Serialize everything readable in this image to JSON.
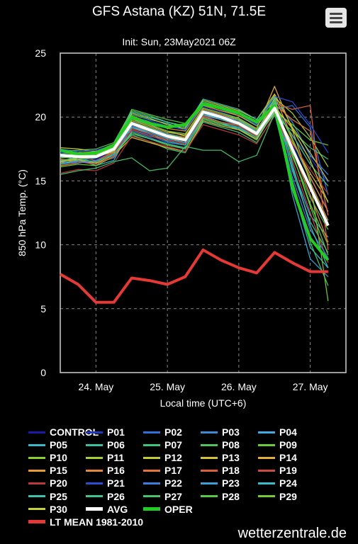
{
  "header": {
    "title": "GFS Astana (KZ) 51N, 71.5E",
    "subtitle": "Init: Sun, 23May2021 06Z",
    "menu_icon": "hamburger-menu-icon"
  },
  "footer": {
    "credit": "wetterzentrale.de"
  },
  "colors": {
    "background": "#000000",
    "avg": "#ffffff",
    "oper": "#22cc22",
    "lt_mean": "#e53935",
    "grid": "#888888"
  },
  "chart_data": {
    "type": "line",
    "title": "GFS Astana (KZ) 51N, 71.5E",
    "subtitle": "Init: Sun, 23May2021 06Z",
    "xlabel": "Local time (UTC+6)",
    "ylabel": "850 hPa Temp. (°C)",
    "x_tick_labels": [
      "24. May",
      "25. May",
      "26. May",
      "27. May"
    ],
    "y_ticks": [
      0,
      5,
      10,
      15,
      20,
      25
    ],
    "ylim": [
      0,
      25
    ],
    "x_unit": "hours from 23 May 12:00 local",
    "x": [
      0,
      6,
      12,
      18,
      24,
      30,
      36,
      42,
      48,
      54,
      60,
      66,
      72,
      78,
      84,
      90,
      96
    ],
    "grid": true,
    "legend_position": "bottom",
    "avg": [
      17.0,
      16.9,
      16.9,
      17.5,
      19.5,
      19.0,
      18.5,
      18.2,
      20.4,
      20.0,
      19.5,
      18.7,
      20.7,
      17.5,
      14.5,
      11.5,
      null
    ],
    "oper": [
      17.4,
      17.1,
      17.2,
      17.8,
      20.0,
      19.5,
      19.2,
      19.4,
      21.0,
      20.7,
      20.3,
      19.6,
      20.9,
      14.5,
      10.5,
      8.8,
      null
    ],
    "lt_mean": [
      7.7,
      6.9,
      5.5,
      5.5,
      7.4,
      7.2,
      6.9,
      7.5,
      9.6,
      8.8,
      8.2,
      7.8,
      9.4,
      8.6,
      7.9,
      7.9,
      null
    ],
    "members": [
      {
        "name": "CONTROL",
        "color": "#1a1aa8",
        "values": [
          17.0,
          16.8,
          16.7,
          17.3,
          19.2,
          18.8,
          18.4,
          18.0,
          20.2,
          19.9,
          19.6,
          18.7,
          20.6,
          17.8,
          15.2,
          12.8
        ]
      },
      {
        "name": "P01",
        "color": "#2038c0",
        "values": [
          16.8,
          17.0,
          16.9,
          17.6,
          19.8,
          19.3,
          18.9,
          18.6,
          20.8,
          20.4,
          19.9,
          18.9,
          21.1,
          18.5,
          16.8,
          14.9
        ]
      },
      {
        "name": "P02",
        "color": "#2f6fd8",
        "values": [
          17.5,
          17.3,
          16.9,
          17.9,
          19.0,
          18.6,
          18.0,
          17.8,
          20.1,
          19.6,
          19.1,
          18.2,
          20.6,
          20.9,
          19.2,
          13.9
        ]
      },
      {
        "name": "P03",
        "color": "#3a8ad8",
        "values": [
          16.3,
          16.5,
          16.4,
          16.8,
          18.9,
          18.4,
          17.9,
          17.5,
          20.5,
          20.2,
          19.8,
          18.9,
          21.3,
          19.6,
          17.0,
          15.5
        ]
      },
      {
        "name": "P04",
        "color": "#45a8e8",
        "values": [
          16.5,
          16.9,
          17.0,
          17.2,
          19.4,
          19.0,
          18.6,
          18.3,
          20.3,
          19.8,
          19.4,
          18.6,
          20.8,
          16.0,
          12.3,
          10.6
        ]
      },
      {
        "name": "P05",
        "color": "#3ab8c8",
        "values": [
          16.9,
          16.7,
          16.2,
          16.6,
          19.2,
          18.7,
          18.1,
          17.8,
          19.9,
          19.5,
          19.2,
          18.4,
          20.3,
          14.6,
          9.8,
          8.2
        ]
      },
      {
        "name": "P06",
        "color": "#3cc0a0",
        "values": [
          17.2,
          17.1,
          17.0,
          17.7,
          20.2,
          19.8,
          19.5,
          19.0,
          21.1,
          20.8,
          20.4,
          19.5,
          21.4,
          15.8,
          11.8,
          9.4
        ]
      },
      {
        "name": "P07",
        "color": "#43c478",
        "values": [
          16.7,
          16.6,
          16.5,
          17.1,
          18.6,
          18.1,
          17.5,
          17.2,
          19.6,
          19.2,
          18.8,
          18.0,
          20.1,
          18.9,
          17.6,
          16.7
        ]
      },
      {
        "name": "P08",
        "color": "#52c25a",
        "values": [
          17.3,
          17.4,
          17.5,
          18.0,
          20.5,
          20.1,
          19.6,
          19.3,
          21.0,
          20.6,
          20.1,
          19.3,
          21.0,
          16.9,
          13.7,
          11.2
        ]
      },
      {
        "name": "P09",
        "color": "#6acc3a",
        "values": [
          16.1,
          16.3,
          16.2,
          16.9,
          18.8,
          18.3,
          17.8,
          17.5,
          19.9,
          19.5,
          19.0,
          18.2,
          20.5,
          19.4,
          18.2,
          17.8
        ]
      },
      {
        "name": "P10",
        "color": "#86cf2e",
        "values": [
          17.0,
          16.9,
          16.8,
          17.4,
          19.6,
          19.2,
          18.7,
          18.4,
          20.6,
          20.2,
          19.8,
          18.9,
          21.2,
          17.1,
          13.2,
          10.0
        ]
      },
      {
        "name": "P11",
        "color": "#a4cf30",
        "values": [
          16.6,
          16.8,
          17.0,
          17.5,
          19.9,
          19.4,
          18.9,
          18.5,
          20.2,
          19.8,
          19.5,
          18.5,
          21.5,
          20.3,
          18.4,
          16.1
        ]
      },
      {
        "name": "P12",
        "color": "#c0cc34",
        "values": [
          17.6,
          17.5,
          17.3,
          17.8,
          20.3,
          19.9,
          19.4,
          19.1,
          21.3,
          20.9,
          20.5,
          19.8,
          21.8,
          19.2,
          17.2,
          15.0
        ]
      },
      {
        "name": "P13",
        "color": "#d4c03a",
        "values": [
          16.4,
          16.6,
          16.4,
          17.0,
          18.4,
          18.0,
          17.6,
          17.3,
          19.7,
          19.3,
          19.0,
          18.3,
          20.4,
          18.0,
          15.6,
          13.4
        ]
      },
      {
        "name": "P14",
        "color": "#e0ae3a",
        "values": [
          17.1,
          17.0,
          17.1,
          17.6,
          19.7,
          19.3,
          18.8,
          18.6,
          20.7,
          20.3,
          19.9,
          19.1,
          22.4,
          19.0,
          14.9,
          11.9
        ]
      },
      {
        "name": "P15",
        "color": "#e89a3a",
        "values": [
          16.9,
          17.2,
          17.3,
          17.9,
          20.1,
          19.6,
          19.1,
          18.9,
          20.9,
          20.5,
          20.1,
          19.4,
          21.7,
          18.3,
          15.3,
          12.6
        ]
      },
      {
        "name": "P16",
        "color": "#e8863a",
        "values": [
          16.2,
          16.4,
          16.6,
          17.2,
          19.3,
          18.9,
          18.4,
          18.0,
          20.0,
          19.6,
          19.3,
          18.6,
          20.9,
          17.4,
          13.9,
          10.2
        ]
      },
      {
        "name": "P17",
        "color": "#e4743c",
        "values": [
          17.4,
          17.2,
          16.9,
          17.6,
          19.5,
          19.1,
          18.6,
          18.4,
          20.6,
          20.2,
          19.7,
          18.8,
          21.0,
          19.8,
          18.9,
          12.3
        ]
      },
      {
        "name": "P18",
        "color": "#d8603e",
        "values": [
          16.7,
          16.5,
          16.3,
          16.9,
          19.1,
          18.7,
          18.2,
          17.9,
          20.4,
          20.0,
          19.6,
          18.7,
          21.1,
          20.6,
          20.9,
          9.6
        ]
      },
      {
        "name": "P19",
        "color": "#c84c40",
        "values": [
          16.8,
          16.9,
          16.6,
          17.3,
          19.0,
          18.5,
          18.2,
          17.9,
          20.1,
          19.8,
          19.3,
          18.5,
          20.7,
          16.6,
          12.5,
          8.6
        ]
      },
      {
        "name": "P20",
        "color": "#b83a3a",
        "values": [
          15.6,
          15.9,
          15.8,
          16.4,
          18.5,
          18.1,
          17.7,
          17.3,
          19.4,
          19.0,
          18.6,
          17.9,
          20.2,
          17.9,
          15.9,
          14.0
        ]
      },
      {
        "name": "P21",
        "color": "#2a4ed0",
        "values": [
          17.2,
          17.3,
          17.4,
          17.8,
          20.0,
          19.7,
          19.3,
          19.0,
          21.0,
          20.6,
          20.2,
          19.4,
          21.6,
          21.2,
          19.4,
          17.2
        ]
      },
      {
        "name": "P22",
        "color": "#3c7ee0",
        "values": [
          16.5,
          16.4,
          16.6,
          17.0,
          19.3,
          18.8,
          18.3,
          18.0,
          20.3,
          19.9,
          19.5,
          18.6,
          20.9,
          15.3,
          11.2,
          9.0
        ]
      },
      {
        "name": "P23",
        "color": "#3aa0d8",
        "values": [
          17.0,
          16.8,
          16.9,
          17.4,
          19.6,
          19.1,
          18.7,
          18.3,
          20.5,
          20.1,
          19.7,
          18.9,
          21.2,
          13.9,
          8.9,
          7.5
        ]
      },
      {
        "name": "P24",
        "color": "#38bccc",
        "values": [
          16.3,
          16.6,
          16.8,
          17.4,
          19.2,
          18.8,
          18.3,
          18.0,
          20.2,
          19.8,
          19.4,
          18.6,
          20.8,
          17.6,
          14.6,
          11.7
        ]
      },
      {
        "name": "P25",
        "color": "#3cc4b0",
        "values": [
          16.9,
          17.1,
          17.2,
          17.7,
          20.4,
          20.0,
          19.6,
          19.2,
          21.4,
          21.0,
          20.6,
          19.8,
          21.6,
          16.3,
          11.5,
          8.2
        ]
      },
      {
        "name": "P26",
        "color": "#40c68c",
        "values": [
          16.6,
          16.7,
          16.5,
          17.1,
          18.7,
          18.3,
          17.9,
          17.6,
          19.8,
          19.4,
          19.1,
          18.4,
          20.5,
          18.6,
          16.3,
          14.6
        ]
      },
      {
        "name": "P27",
        "color": "#46c468",
        "values": [
          15.5,
          15.8,
          16.0,
          16.5,
          16.8,
          15.8,
          16.0,
          17.7,
          17.4,
          17.4,
          16.5,
          17.0,
          20.3,
          15.0,
          10.2,
          6.8
        ]
      },
      {
        "name": "P28",
        "color": "#58c648",
        "values": [
          17.1,
          17.0,
          17.2,
          17.7,
          20.6,
          20.2,
          19.8,
          19.5,
          21.2,
          20.8,
          20.4,
          19.6,
          21.3,
          17.2,
          13.0,
          9.2
        ]
      },
      {
        "name": "P29",
        "color": "#70cc38",
        "values": [
          16.8,
          16.9,
          17.1,
          17.6,
          19.8,
          19.4,
          18.9,
          18.7,
          20.7,
          20.3,
          19.9,
          19.0,
          21.1,
          18.2,
          15.1,
          5.6
        ]
      },
      {
        "name": "P30",
        "color": "#c4d23a",
        "values": [
          16.5,
          16.7,
          16.9,
          17.3,
          19.4,
          19.0,
          18.6,
          18.3,
          20.4,
          20.0,
          19.6,
          18.8,
          20.8,
          19.1,
          16.6,
          13.3
        ]
      }
    ],
    "legend": [
      [
        {
          "label": "CONTROL",
          "color": "#1a1aa8"
        },
        {
          "label": "P01",
          "color": "#2038c0"
        },
        {
          "label": "P02",
          "color": "#2f6fd8"
        },
        {
          "label": "P03",
          "color": "#3a8ad8"
        },
        {
          "label": "P04",
          "color": "#45a8e8"
        }
      ],
      [
        {
          "label": "P05",
          "color": "#3ab8c8"
        },
        {
          "label": "P06",
          "color": "#3cc0a0"
        },
        {
          "label": "P07",
          "color": "#43c478"
        },
        {
          "label": "P08",
          "color": "#52c25a"
        },
        {
          "label": "P09",
          "color": "#6acc3a"
        }
      ],
      [
        {
          "label": "P10",
          "color": "#86cf2e"
        },
        {
          "label": "P11",
          "color": "#a4cf30"
        },
        {
          "label": "P12",
          "color": "#c0cc34"
        },
        {
          "label": "P13",
          "color": "#d4c03a"
        },
        {
          "label": "P14",
          "color": "#e0ae3a"
        }
      ],
      [
        {
          "label": "P15",
          "color": "#e89a3a"
        },
        {
          "label": "P16",
          "color": "#e8863a"
        },
        {
          "label": "P17",
          "color": "#e4743c"
        },
        {
          "label": "P18",
          "color": "#d8603e"
        },
        {
          "label": "P19",
          "color": "#c84c40"
        }
      ],
      [
        {
          "label": "P20",
          "color": "#b83a3a"
        },
        {
          "label": "P21",
          "color": "#2a4ed0"
        },
        {
          "label": "P22",
          "color": "#3c7ee0"
        },
        {
          "label": "P23",
          "color": "#3aa0d8"
        },
        {
          "label": "P24",
          "color": "#38bccc"
        }
      ],
      [
        {
          "label": "P25",
          "color": "#3cc4b0"
        },
        {
          "label": "P26",
          "color": "#40c68c"
        },
        {
          "label": "P27",
          "color": "#46c468"
        },
        {
          "label": "P28",
          "color": "#58c648"
        },
        {
          "label": "P29",
          "color": "#70cc38"
        }
      ],
      [
        {
          "label": "P30",
          "color": "#c4d23a"
        },
        {
          "label": "AVG",
          "color": "#ffffff",
          "thick": true
        },
        {
          "label": "OPER",
          "color": "#22cc22",
          "thick": true
        }
      ],
      [
        {
          "label": "LT MEAN 1981-2010",
          "color": "#e53935",
          "thick": true,
          "wide": true
        }
      ]
    ]
  }
}
